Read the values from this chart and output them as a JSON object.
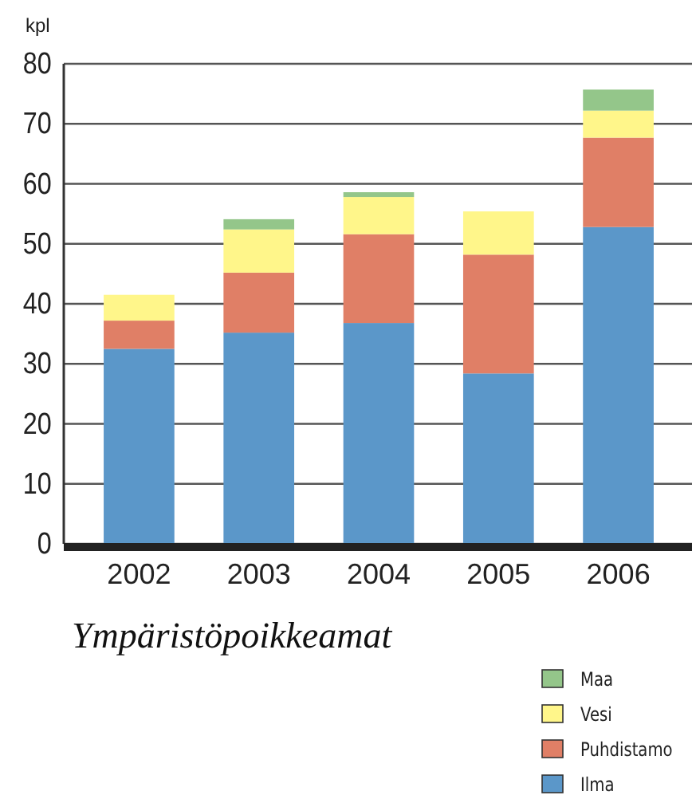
{
  "chart_data": {
    "type": "bar",
    "stacked": true,
    "title": "Ympäristöpoikkeamat",
    "ylabel": "kpl",
    "categories": [
      "2002",
      "2003",
      "2004",
      "2005",
      "2006"
    ],
    "series": [
      {
        "name": "Ilma",
        "color": "#5b97c9",
        "values": [
          32.5,
          35.2,
          36.8,
          28.4,
          52.8
        ]
      },
      {
        "name": "Puhdistamo",
        "color": "#e07f66",
        "values": [
          4.7,
          10.0,
          14.8,
          19.8,
          14.9
        ]
      },
      {
        "name": "Vesi",
        "color": "#fff68a",
        "values": [
          4.3,
          7.2,
          6.2,
          7.2,
          4.5
        ]
      },
      {
        "name": "Maa",
        "color": "#94c68a",
        "values": [
          0,
          1.7,
          0.8,
          0,
          3.5
        ]
      }
    ],
    "ylim": [
      0,
      80
    ],
    "yticks": [
      0,
      10,
      20,
      30,
      40,
      50,
      60,
      70,
      80
    ],
    "grid": "y",
    "legend": "bottom right"
  }
}
